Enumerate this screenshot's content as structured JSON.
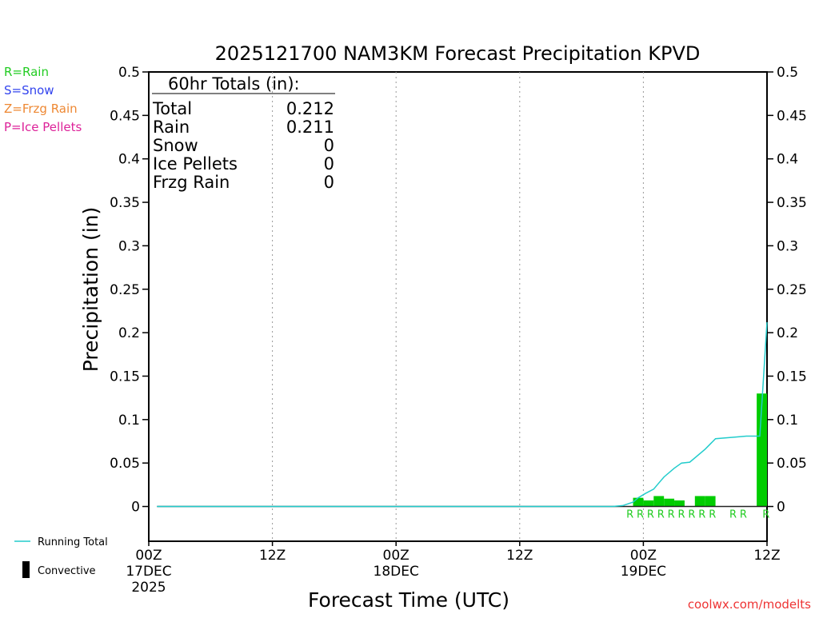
{
  "chart_data": {
    "type": "bar",
    "title": "2025121700 NAM3KM Forecast Precipitation KPVD",
    "xlabel": "Forecast Time (UTC)",
    "ylabel": "Precipitation (in)",
    "ylim": [
      -0.04,
      0.5
    ],
    "yticks": [
      0,
      0.05,
      0.1,
      0.15,
      0.2,
      0.25,
      0.3,
      0.35,
      0.4,
      0.45,
      0.5
    ],
    "yticklabels": [
      "0",
      "0.05",
      "0.1",
      "0.15",
      "0.2",
      "0.25",
      "0.3",
      "0.35",
      "0.4",
      "0.45",
      "0.5"
    ],
    "xlim": [
      0,
      60
    ],
    "xticks": [
      {
        "hour": 0,
        "label": "00Z",
        "sub1": "17DEC",
        "sub2": "2025"
      },
      {
        "hour": 12,
        "label": "12Z",
        "sub1": "",
        "sub2": ""
      },
      {
        "hour": 24,
        "label": "00Z",
        "sub1": "18DEC",
        "sub2": ""
      },
      {
        "hour": 36,
        "label": "12Z",
        "sub1": "",
        "sub2": ""
      },
      {
        "hour": 48,
        "label": "00Z",
        "sub1": "19DEC",
        "sub2": ""
      },
      {
        "hour": 60,
        "label": "12Z",
        "sub1": "",
        "sub2": ""
      }
    ],
    "bars": [
      {
        "hour": 48,
        "value": 0.01,
        "ptype": "R"
      },
      {
        "hour": 49,
        "value": 0.007,
        "ptype": "R"
      },
      {
        "hour": 50,
        "value": 0.012,
        "ptype": "R"
      },
      {
        "hour": 51,
        "value": 0.009,
        "ptype": "R"
      },
      {
        "hour": 52,
        "value": 0.007,
        "ptype": "R"
      },
      {
        "hour": 53,
        "value": 0.0,
        "ptype": "R"
      },
      {
        "hour": 54,
        "value": 0.012,
        "ptype": "R"
      },
      {
        "hour": 55,
        "value": 0.012,
        "ptype": "R"
      },
      {
        "hour": 57,
        "value": 0.0,
        "ptype": "R"
      },
      {
        "hour": 58,
        "value": 0.0,
        "ptype": "R"
      },
      {
        "hour": 60,
        "value": 0.13,
        "ptype": "R"
      }
    ],
    "ptype_labels": [
      {
        "hour": 46.7,
        "text": "R"
      },
      {
        "hour": 47.7,
        "text": "R"
      },
      {
        "hour": 48.7,
        "text": "R"
      },
      {
        "hour": 49.7,
        "text": "R"
      },
      {
        "hour": 50.7,
        "text": "R"
      },
      {
        "hour": 51.7,
        "text": "R"
      },
      {
        "hour": 52.7,
        "text": "R"
      },
      {
        "hour": 53.7,
        "text": "R"
      },
      {
        "hour": 54.7,
        "text": "R"
      },
      {
        "hour": 56.7,
        "text": "R"
      },
      {
        "hour": 57.7,
        "text": "R"
      },
      {
        "hour": 59.9,
        "text": "R"
      }
    ],
    "running_total": {
      "name": "Running Total",
      "points": [
        [
          0.8,
          0
        ],
        [
          40,
          0
        ],
        [
          45,
          0
        ],
        [
          46,
          0.001
        ],
        [
          47,
          0.005
        ],
        [
          47.5,
          0.01
        ],
        [
          48.2,
          0.015
        ],
        [
          49,
          0.02
        ],
        [
          49.5,
          0.027
        ],
        [
          50,
          0.034
        ],
        [
          51,
          0.044
        ],
        [
          51.7,
          0.05
        ],
        [
          52.5,
          0.051
        ],
        [
          54,
          0.066
        ],
        [
          55,
          0.078
        ],
        [
          57,
          0.08
        ],
        [
          58,
          0.081
        ],
        [
          59,
          0.081
        ],
        [
          59.3,
          0.081
        ],
        [
          60,
          0.212
        ]
      ]
    },
    "legend_series": [
      "Running Total",
      "Convective"
    ]
  },
  "totals_box": {
    "header": "60hr Totals (in):",
    "rows": [
      {
        "label": "Total",
        "value": "0.212"
      },
      {
        "label": "Rain",
        "value": "0.211"
      },
      {
        "label": "Snow",
        "value": "0"
      },
      {
        "label": "Ice Pellets",
        "value": "0"
      },
      {
        "label": "Frzg Rain",
        "value": "0"
      }
    ]
  },
  "ptype_legend": [
    {
      "text": "R=Rain",
      "color": "#22cc22"
    },
    {
      "text": "S=Snow",
      "color": "#3344ee"
    },
    {
      "text": "Z=Frzg Rain",
      "color": "#ee8833"
    },
    {
      "text": "P=Ice Pellets",
      "color": "#dd2299"
    }
  ],
  "series_legend": {
    "running_total": "Running Total",
    "convective": "Convective"
  },
  "colors": {
    "bar": "#00cc00",
    "line": "#22cccc",
    "label_r": "#22cc22",
    "credit": "#ee3333"
  },
  "credit": "coolwx.com/modelts"
}
